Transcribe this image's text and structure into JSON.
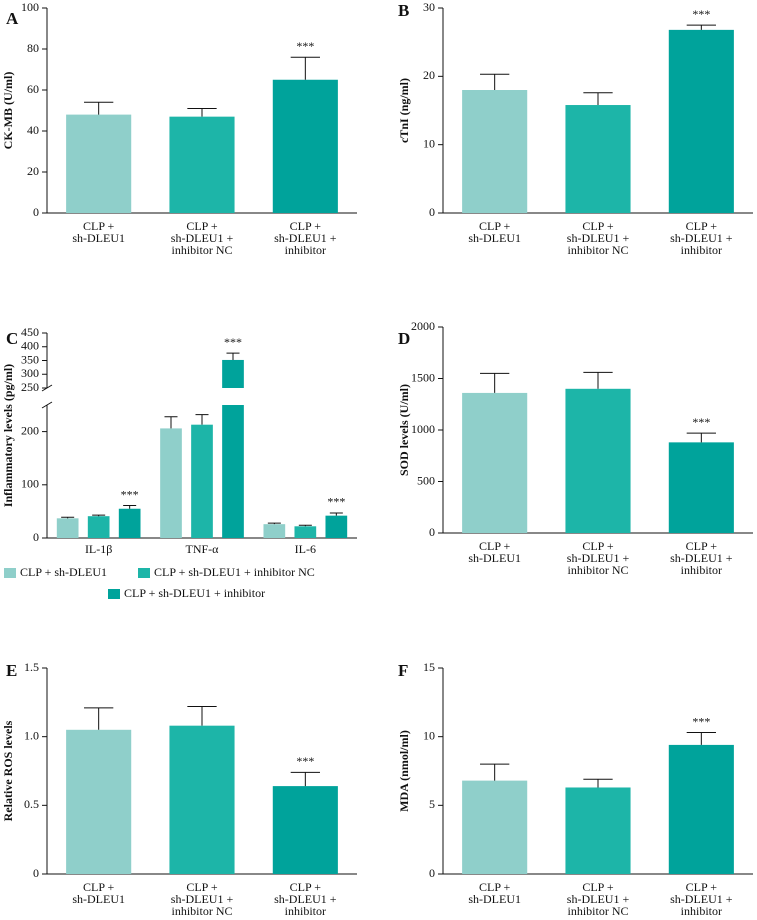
{
  "chart_data": [
    {
      "type": "bar",
      "label": "A",
      "ylabel": "CK-MB (U/ml)",
      "categories": [
        [
          "CLP +",
          "sh-DLEU1"
        ],
        [
          "CLP +",
          "sh-DLEU1 +",
          "inhibitor NC"
        ],
        [
          "CLP +",
          "sh-DLEU1 +",
          "inhibitor"
        ]
      ],
      "values": [
        48,
        47,
        65
      ],
      "errors": [
        6,
        4,
        11
      ],
      "colors": [
        "#8fcfca",
        "#1db5a8",
        "#00a39b"
      ],
      "annotations": [
        null,
        null,
        "***"
      ],
      "ylim": [
        0,
        100
      ],
      "yticks": [
        0,
        20,
        40,
        60,
        80,
        100
      ]
    },
    {
      "type": "bar",
      "label": "B",
      "ylabel": "cTnI (ng/ml)",
      "categories": [
        [
          "CLP +",
          "sh-DLEU1"
        ],
        [
          "CLP +",
          "sh-DLEU1 +",
          "inhibitor NC"
        ],
        [
          "CLP +",
          "sh-DLEU1 +",
          "inhibitor"
        ]
      ],
      "values": [
        18,
        15.8,
        26.8
      ],
      "errors": [
        2.3,
        1.8,
        0.7
      ],
      "colors": [
        "#8fcfca",
        "#1db5a8",
        "#00a39b"
      ],
      "annotations": [
        null,
        null,
        "***"
      ],
      "ylim": [
        0,
        30
      ],
      "yticks": [
        0,
        10,
        20,
        30
      ]
    },
    {
      "type": "grouped_bar",
      "label": "C",
      "ylabel": "Inflammatory levels (pg/ml)",
      "categories": [
        "IL-1β",
        "TNF-α",
        "IL-6"
      ],
      "series": [
        {
          "name": "CLP + sh-DLEU1",
          "color": "#8fcfca",
          "values": [
            37,
            206,
            26
          ],
          "errors": [
            2,
            22,
            2
          ]
        },
        {
          "name": "CLP + sh-DLEU1 + inhibitor NC",
          "color": "#1db5a8",
          "values": [
            41,
            213,
            22
          ],
          "errors": [
            2,
            19,
            2
          ]
        },
        {
          "name": "CLP + sh-DLEU1 + inhibitor",
          "color": "#00a39b",
          "values": [
            55,
            352,
            42
          ],
          "errors": [
            6,
            25,
            5
          ],
          "annotations": [
            "***",
            "***",
            "***"
          ]
        }
      ],
      "ylim": [
        0,
        450
      ],
      "ysegments": [
        [
          0,
          250
        ],
        [
          250,
          450
        ]
      ],
      "yticks": [
        0,
        100,
        200,
        250,
        300,
        350,
        400,
        450
      ]
    },
    {
      "type": "bar",
      "label": "D",
      "ylabel": "SOD levels (U/ml)",
      "categories": [
        [
          "CLP +",
          "sh-DLEU1"
        ],
        [
          "CLP +",
          "sh-DLEU1 +",
          "inhibitor NC"
        ],
        [
          "CLP +",
          "sh-DLEU1 +",
          "inhibitor"
        ]
      ],
      "values": [
        1360,
        1400,
        880
      ],
      "errors": [
        190,
        160,
        90
      ],
      "colors": [
        "#8fcfca",
        "#1db5a8",
        "#00a39b"
      ],
      "annotations": [
        null,
        null,
        "***"
      ],
      "ylim": [
        0,
        2000
      ],
      "yticks": [
        0,
        500,
        1000,
        1500,
        2000
      ]
    },
    {
      "type": "bar",
      "label": "E",
      "ylabel": "Relative ROS levels",
      "categories": [
        [
          "CLP +",
          "sh-DLEU1"
        ],
        [
          "CLP +",
          "sh-DLEU1 +",
          "inhibitor NC"
        ],
        [
          "CLP +",
          "sh-DLEU1 +",
          "inhibitor"
        ]
      ],
      "values": [
        1.05,
        1.08,
        0.64
      ],
      "errors": [
        0.16,
        0.14,
        0.1
      ],
      "colors": [
        "#8fcfca",
        "#1db5a8",
        "#00a39b"
      ],
      "annotations": [
        null,
        null,
        "***"
      ],
      "ylim": [
        0,
        1.5
      ],
      "yticks": [
        0,
        0.5,
        {
          "value": 1,
          "label": "1.0"
        },
        1.5
      ]
    },
    {
      "type": "bar",
      "label": "F",
      "ylabel": "MDA (nmol/ml)",
      "categories": [
        [
          "CLP +",
          "sh-DLEU1"
        ],
        [
          "CLP +",
          "sh-DLEU1 +",
          "inhibitor NC"
        ],
        [
          "CLP +",
          "sh-DLEU1 +",
          "inhibitor"
        ]
      ],
      "values": [
        6.8,
        6.3,
        9.4
      ],
      "errors": [
        1.2,
        0.6,
        0.9
      ],
      "colors": [
        "#8fcfca",
        "#1db5a8",
        "#00a39b"
      ],
      "annotations": [
        null,
        null,
        "***"
      ],
      "ylim": [
        0,
        15
      ],
      "yticks": [
        0,
        5,
        10,
        15
      ]
    }
  ]
}
